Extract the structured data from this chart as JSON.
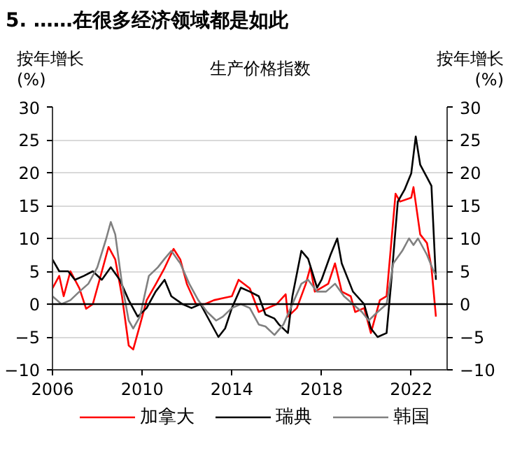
{
  "chart_data": {
    "type": "line",
    "title": "5. ……在很多经济领域都是如此",
    "subtitle": "生产价格指数",
    "ylabel": "按年增长 (%)",
    "y2label": "按年增长 (%)",
    "xlim": [
      2006,
      2023.6
    ],
    "xticks": [
      2006,
      2010,
      2014,
      2018,
      2022
    ],
    "ylim": [
      -10,
      30
    ],
    "yticks": [
      -10,
      -5,
      0,
      5,
      10,
      15,
      20,
      25,
      30
    ],
    "y2lim": [
      -10,
      30
    ],
    "y2ticks": [
      -10,
      -5,
      0,
      5,
      10,
      15,
      20,
      25,
      30
    ],
    "grid": "y",
    "legend": "bottom",
    "ref_lines": [
      {
        "axis": "y",
        "value": 0,
        "color": "#000000"
      }
    ],
    "series": [
      {
        "name": "加拿大",
        "color": "#ff0000",
        "x": [
          2006.0,
          2006.3,
          2006.5,
          2006.8,
          2007.2,
          2007.5,
          2007.8,
          2008.1,
          2008.5,
          2008.8,
          2009.1,
          2009.4,
          2009.6,
          2009.9,
          2010.2,
          2010.6,
          2011.0,
          2011.4,
          2011.7,
          2012.0,
          2012.4,
          2012.8,
          2013.2,
          2013.6,
          2014.0,
          2014.3,
          2014.8,
          2015.2,
          2015.6,
          2016.0,
          2016.4,
          2016.5,
          2016.9,
          2017.3,
          2017.5,
          2017.7,
          2018.3,
          2018.6,
          2018.9,
          2019.3,
          2019.5,
          2019.9,
          2020.2,
          2020.6,
          2020.9,
          2021.3,
          2021.5,
          2022.0,
          2022.1,
          2022.4,
          2022.7,
          2022.9,
          2023.1
        ],
        "values": [
          2.4,
          4.3,
          1.2,
          5,
          2.4,
          -0.7,
          0,
          3.7,
          8.7,
          6.8,
          1.2,
          -6.3,
          -6.9,
          -3.2,
          0.6,
          3,
          5.5,
          8.4,
          6.8,
          3,
          0,
          0,
          0.6,
          0.9,
          1.2,
          3.7,
          2.4,
          -1.2,
          -0.6,
          0,
          1.5,
          -1.9,
          -0.6,
          3.1,
          5.6,
          1.9,
          3.1,
          6.2,
          1.9,
          1.2,
          -1.2,
          -0.6,
          -4.4,
          0.6,
          1.2,
          16.8,
          15.6,
          16.2,
          17.8,
          10.6,
          9.3,
          5.6,
          -1.9
        ]
      },
      {
        "name": "瑞典",
        "color": "#000000",
        "x": [
          2006.0,
          2006.3,
          2006.7,
          2007.0,
          2007.4,
          2007.8,
          2008.2,
          2008.6,
          2009.0,
          2009.4,
          2009.8,
          2010.2,
          2010.6,
          2011.0,
          2011.3,
          2011.8,
          2012.2,
          2012.6,
          2013.0,
          2013.4,
          2013.7,
          2014.0,
          2014.4,
          2014.8,
          2015.2,
          2015.5,
          2015.9,
          2016.1,
          2016.5,
          2016.7,
          2017.1,
          2017.4,
          2017.8,
          2018.0,
          2018.4,
          2018.7,
          2018.9,
          2019.4,
          2019.9,
          2020.2,
          2020.5,
          2020.9,
          2021.1,
          2021.4,
          2021.7,
          2022.0,
          2022.2,
          2022.4,
          2022.7,
          2022.9,
          2023.1
        ],
        "values": [
          6.8,
          5,
          5,
          3.7,
          4.3,
          5,
          3.7,
          5.6,
          3.7,
          0.6,
          -1.9,
          -0.6,
          1.9,
          3.7,
          1.2,
          0,
          -0.6,
          0,
          -2.5,
          -5,
          -3.7,
          -0.6,
          2.5,
          1.9,
          1.2,
          -1.6,
          -2.2,
          -3.1,
          -4.4,
          1.2,
          8.1,
          6.9,
          2.5,
          3.7,
          7.5,
          10,
          6.2,
          1.9,
          0,
          -3.7,
          -5,
          -4.4,
          3.1,
          15.6,
          17.4,
          19.9,
          25.5,
          21.2,
          19.3,
          18,
          3.7
        ]
      },
      {
        "name": "韩国",
        "color": "#808080",
        "x": [
          2006.0,
          2006.4,
          2006.8,
          2007.2,
          2007.6,
          2008.0,
          2008.4,
          2008.6,
          2008.8,
          2009.1,
          2009.4,
          2009.6,
          2009.9,
          2010.3,
          2010.7,
          2011.0,
          2011.3,
          2011.7,
          2012.1,
          2012.5,
          2012.9,
          2013.3,
          2013.6,
          2014.0,
          2014.4,
          2014.8,
          2015.2,
          2015.5,
          2015.9,
          2016.3,
          2016.7,
          2017.1,
          2017.4,
          2017.8,
          2018.2,
          2018.6,
          2019.0,
          2019.4,
          2019.8,
          2020.1,
          2020.5,
          2020.9,
          2021.2,
          2021.6,
          2021.9,
          2022.1,
          2022.3,
          2022.7,
          2023.0,
          2023.1
        ],
        "values": [
          1.2,
          0,
          0.6,
          1.9,
          3.1,
          5.6,
          10,
          12.5,
          10.6,
          3.1,
          -2.5,
          -3.7,
          -1.9,
          4.3,
          5.6,
          6.9,
          8.1,
          6.2,
          3.1,
          0.6,
          -1.2,
          -2.5,
          -1.9,
          -0.6,
          0,
          -0.6,
          -3.1,
          -3.4,
          -4.7,
          -3.1,
          0,
          3.1,
          3.7,
          1.9,
          1.9,
          3.1,
          1.2,
          0,
          -1.2,
          -2.5,
          -1.2,
          0,
          6.2,
          8.1,
          10,
          9,
          10,
          7.5,
          5,
          4.4
        ]
      }
    ]
  }
}
